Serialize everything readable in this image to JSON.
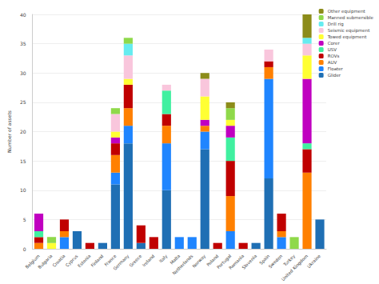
{
  "chart_data": {
    "type": "bar",
    "stacked": true,
    "grid": true,
    "legend": "top-right",
    "y_label": "Number of assets",
    "categories": [
      "Belgium",
      "Bulgaria",
      "Croatia",
      "Cyprus",
      "Estonia",
      "Finland",
      "France",
      "Germany",
      "Greece",
      "Ireland",
      "Italy",
      "Malta",
      "Netherlands",
      "Norway",
      "Poland",
      "Portugal",
      "Romania",
      "Slovenia",
      "Spain",
      "Sweden",
      "Turkey",
      "United Kingdom",
      "Ukraine"
    ],
    "ylim": [
      0,
      40
    ],
    "yticks": [
      0,
      5,
      10,
      15,
      20,
      25,
      30,
      35,
      40
    ],
    "series": [
      {
        "name": "Glider",
        "color": "#1f6fb4",
        "values": [
          0,
          0,
          0,
          3,
          0,
          1,
          11,
          18,
          1,
          0,
          10,
          0,
          0,
          17,
          0,
          0,
          0,
          1,
          12,
          0,
          0,
          0,
          5
        ]
      },
      {
        "name": "Floater",
        "color": "#1f85ff",
        "values": [
          0,
          0,
          2,
          0,
          0,
          0,
          2,
          3,
          0,
          0,
          8,
          2,
          2,
          3,
          0,
          3,
          0,
          0,
          17,
          2,
          0,
          0,
          0
        ]
      },
      {
        "name": "AUV",
        "color": "#ff8000",
        "values": [
          1,
          0,
          1,
          0,
          0,
          0,
          3,
          3,
          0,
          0,
          3,
          0,
          0,
          1,
          0,
          6,
          0,
          0,
          2,
          1,
          0,
          13,
          0
        ]
      },
      {
        "name": "ROVs",
        "color": "#c00000",
        "values": [
          1,
          0,
          2,
          0,
          1,
          0,
          2,
          4,
          3,
          2,
          2,
          0,
          0,
          0,
          1,
          6,
          1,
          0,
          1,
          3,
          0,
          4,
          0
        ]
      },
      {
        "name": "USV",
        "color": "#40f0a0",
        "values": [
          1,
          0,
          0,
          0,
          0,
          0,
          0,
          0,
          0,
          0,
          4,
          0,
          0,
          0,
          0,
          4,
          0,
          0,
          0,
          0,
          0,
          1,
          0
        ]
      },
      {
        "name": "Corer",
        "color": "#c000c0",
        "values": [
          3,
          0,
          0,
          0,
          0,
          0,
          1,
          0,
          0,
          0,
          0,
          0,
          0,
          1,
          0,
          2,
          0,
          0,
          0,
          0,
          0,
          11,
          0
        ]
      },
      {
        "name": "Towed equipment",
        "color": "#ffff33",
        "values": [
          0,
          1,
          0,
          0,
          0,
          0,
          1,
          1,
          0,
          0,
          0,
          0,
          0,
          4,
          0,
          1,
          0,
          0,
          0,
          0,
          0,
          4,
          0
        ]
      },
      {
        "name": "Seismic equipment",
        "color": "#f9c6dc",
        "values": [
          0,
          0,
          0,
          0,
          0,
          0,
          3,
          4,
          0,
          0,
          1,
          0,
          0,
          3,
          0,
          0,
          0,
          0,
          2,
          0,
          0,
          2,
          0
        ]
      },
      {
        "name": "Drill rig",
        "color": "#66ecf0",
        "values": [
          0,
          0,
          0,
          0,
          0,
          0,
          0,
          2,
          0,
          0,
          0,
          0,
          0,
          0,
          0,
          0,
          0,
          0,
          0,
          0,
          0,
          1,
          0
        ]
      },
      {
        "name": "Manned submersible",
        "color": "#8fd94a",
        "values": [
          0,
          1,
          0,
          0,
          0,
          0,
          1,
          1,
          0,
          0,
          0,
          0,
          0,
          0,
          0,
          2,
          0,
          0,
          0,
          0,
          2,
          0,
          0
        ]
      },
      {
        "name": "Other equipment",
        "color": "#8c8c1a",
        "values": [
          0,
          0,
          0,
          0,
          0,
          0,
          0,
          0,
          0,
          0,
          0,
          0,
          0,
          1,
          0,
          1,
          0,
          0,
          0,
          0,
          0,
          4,
          0
        ]
      }
    ]
  }
}
